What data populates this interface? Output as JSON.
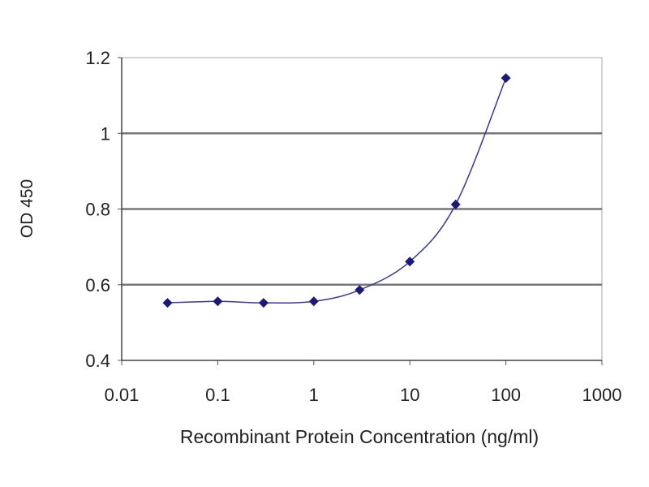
{
  "chart_data": {
    "type": "scatter",
    "title": "",
    "xlabel": "Recombinant Protein Concentration (ng/ml)",
    "ylabel": "OD 450",
    "xscale": "log",
    "xlim": [
      0.01,
      1000
    ],
    "ylim": [
      0.4,
      1.2
    ],
    "xticks": [
      "0.01",
      "0.1",
      "1",
      "10",
      "100",
      "1000"
    ],
    "yticks": [
      "0.4",
      "0.6",
      "0.8",
      "1",
      "1.2"
    ],
    "grid": "horizontal",
    "series": [
      {
        "x": [
          0.03,
          0.1,
          0.3,
          1,
          3,
          10,
          30,
          100
        ],
        "y": [
          0.552,
          0.556,
          0.552,
          0.556,
          0.586,
          0.661,
          0.812,
          1.146
        ],
        "color": "#1a1a7a",
        "marker": "diamond",
        "line": "smooth"
      }
    ]
  }
}
